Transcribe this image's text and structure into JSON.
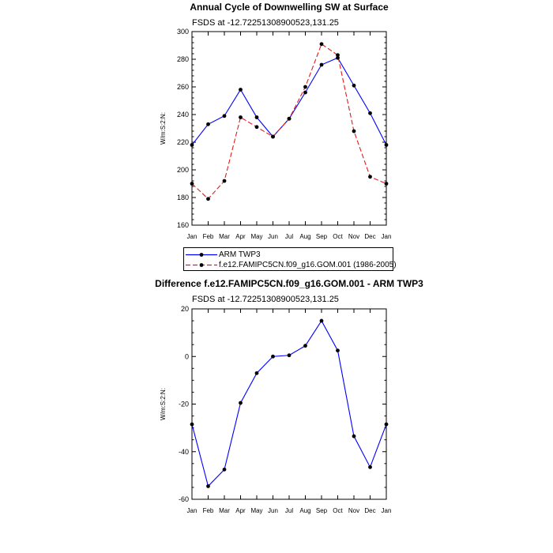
{
  "chart_data": [
    {
      "type": "line",
      "title": "Annual Cycle of Downwelling SW at Surface",
      "subtitle": "FSDS at -12.72251308900523,131.25",
      "ylabel": "W/m:S:2:N:",
      "xlabel": "",
      "categories": [
        "Jan",
        "Feb",
        "Mar",
        "Apr",
        "May",
        "Jun",
        "Jul",
        "Aug",
        "Sep",
        "Oct",
        "Nov",
        "Dec",
        "Jan"
      ],
      "ylim": [
        160,
        300
      ],
      "yticks": [
        160,
        180,
        200,
        220,
        240,
        260,
        280,
        300
      ],
      "grid": false,
      "legend": "bottom",
      "series": [
        {
          "name": "ARM TWP3",
          "color": "#0000ff",
          "dash": "solid",
          "values": [
            218,
            233,
            239,
            258,
            238,
            224,
            237,
            256,
            276,
            281,
            261,
            241,
            218
          ]
        },
        {
          "name": "f.e12.FAMIPC5CN.f09_g16.GOM.001 (1986-2005)",
          "color": "#e41a1c",
          "dash": "dashed",
          "values": [
            190,
            179,
            192,
            238,
            231,
            224,
            237,
            260,
            291,
            283,
            228,
            195,
            190
          ]
        }
      ]
    },
    {
      "type": "line",
      "title": "Difference f.e12.FAMIPC5CN.f09_g16.GOM.001 - ARM TWP3",
      "subtitle": "FSDS at -12.72251308900523,131.25",
      "ylabel": "W/m:S:2:N:",
      "xlabel": "",
      "categories": [
        "Jan",
        "Feb",
        "Mar",
        "Apr",
        "May",
        "Jun",
        "Jul",
        "Aug",
        "Sep",
        "Oct",
        "Nov",
        "Dec",
        "Jan"
      ],
      "ylim": [
        -60,
        20
      ],
      "yticks": [
        -60,
        -40,
        -20,
        0,
        20
      ],
      "grid": false,
      "series": [
        {
          "color": "#0000ff",
          "dash": "solid",
          "values": [
            -28.5,
            -54.5,
            -47.5,
            -19.5,
            -7,
            0,
            0.5,
            4.5,
            15,
            2.5,
            -33.5,
            -46.5,
            -28.5
          ]
        }
      ]
    }
  ]
}
